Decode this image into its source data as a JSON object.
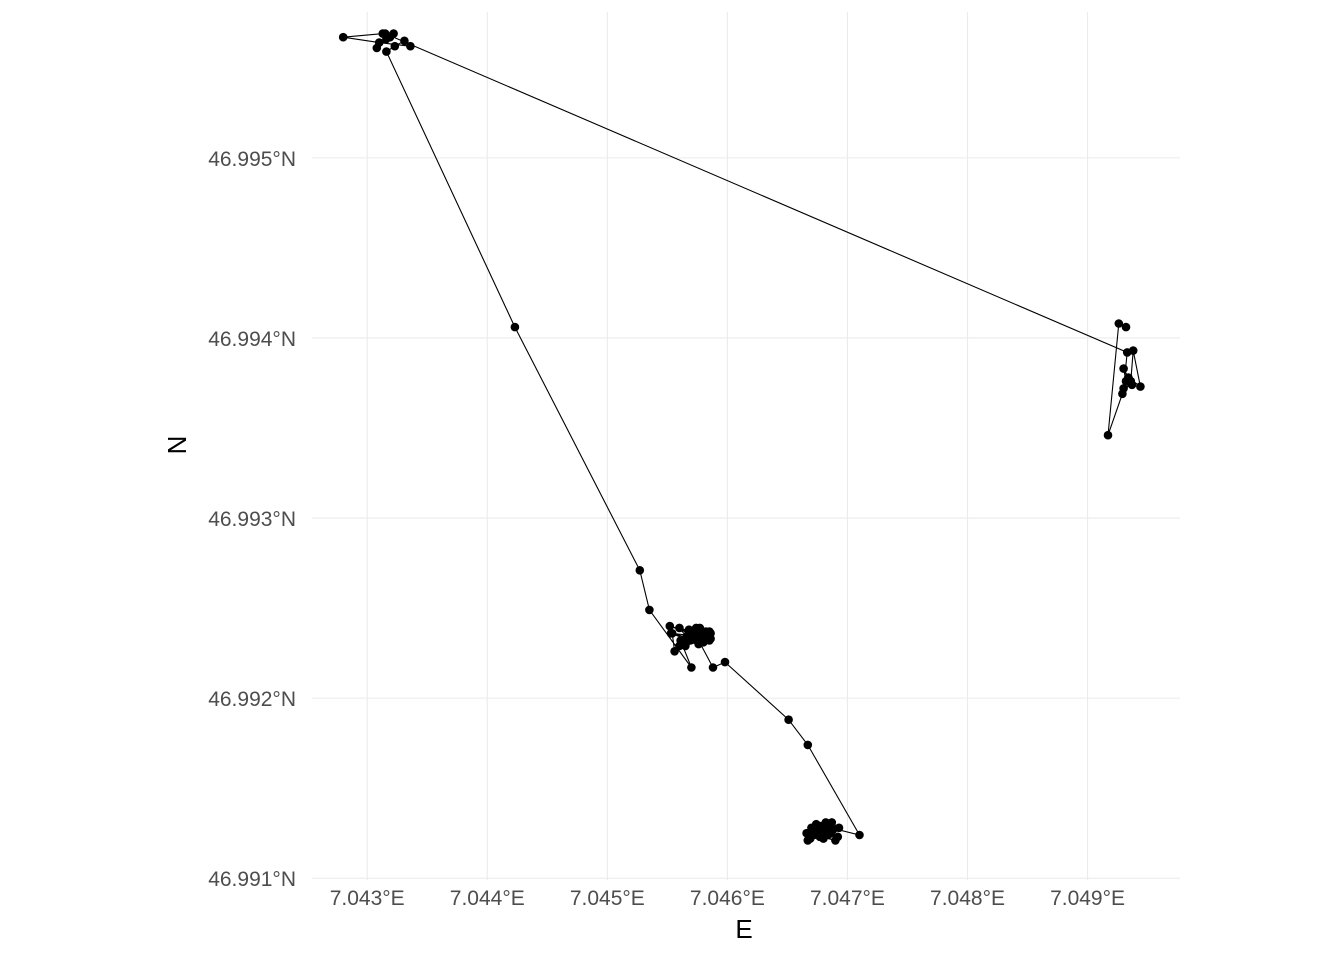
{
  "chart_data": {
    "type": "scatter",
    "subtype": "gps-track",
    "title": "",
    "xlabel": "E",
    "ylabel": "N",
    "xlim": [
      7.04254,
      7.04977
    ],
    "ylim": [
      46.99099,
      46.99581
    ],
    "grid": "on",
    "legend": "none",
    "colors": {
      "points": "#000000",
      "path": "#000000",
      "grid": "#ebebeb",
      "tick_text": "#4d4d4d"
    },
    "x_ticks": [
      {
        "value": 7.043,
        "label": "7.043°E"
      },
      {
        "value": 7.044,
        "label": "7.044°E"
      },
      {
        "value": 7.045,
        "label": "7.045°E"
      },
      {
        "value": 7.046,
        "label": "7.046°E"
      },
      {
        "value": 7.047,
        "label": "7.047°E"
      },
      {
        "value": 7.048,
        "label": "7.048°E"
      },
      {
        "value": 7.049,
        "label": "7.049°E"
      }
    ],
    "y_ticks": [
      {
        "value": 46.991,
        "label": "46.991°N"
      },
      {
        "value": 46.992,
        "label": "46.992°N"
      },
      {
        "value": 46.993,
        "label": "46.993°N"
      },
      {
        "value": 46.994,
        "label": "46.994°N"
      },
      {
        "value": 46.995,
        "label": "46.995°N"
      }
    ],
    "series": [
      {
        "x": [
          7.04677,
          7.04667,
          7.04675,
          7.04686,
          7.0467,
          7.0468,
          7.04688,
          7.04672,
          7.0469,
          7.04682,
          7.04666,
          7.04678,
          7.04692,
          7.04673,
          7.04684,
          7.04668,
          7.04679,
          7.04669,
          7.04693,
          7.04687,
          7.04671,
          7.04676,
          7.04684,
          7.04674,
          7.0471,
          7.04667,
          7.04651,
          7.04598,
          7.04588,
          7.04576,
          7.04575,
          7.0456,
          7.04566,
          7.0458,
          7.04554,
          7.04556,
          7.04565,
          7.0457,
          7.04579,
          7.04571,
          7.04586,
          7.04577,
          7.0456,
          7.04585,
          7.04552,
          7.04578,
          7.04569,
          7.04576,
          7.04553,
          7.04581,
          7.04568,
          7.04582,
          7.04563,
          7.04586,
          7.04567,
          7.04574,
          7.04585,
          7.04561,
          7.0457,
          7.04535,
          7.04527,
          7.04423,
          7.04316,
          7.04323,
          7.04331,
          7.04336,
          7.0431,
          7.0428,
          7.04313,
          7.04322,
          7.04316,
          7.04308,
          7.04319,
          7.04315,
          7.04933,
          7.0493,
          7.04937,
          7.04932,
          7.0493,
          7.04934,
          7.04944,
          7.04938,
          7.04936,
          7.04929,
          7.04917,
          7.04926,
          7.04932
        ],
        "y": [
          46.99123,
          46.99121,
          46.99126,
          46.99125,
          46.99128,
          46.99122,
          46.99127,
          46.99124,
          46.99121,
          46.99131,
          46.99125,
          46.99129,
          46.99123,
          46.99127,
          46.99124,
          46.99123,
          46.99126,
          46.99122,
          46.99128,
          46.99131,
          46.99126,
          46.99124,
          46.99127,
          46.9913,
          46.99124,
          46.99174,
          46.99188,
          46.9922,
          46.99217,
          46.99232,
          46.99236,
          46.99239,
          46.99234,
          46.99231,
          46.99236,
          46.99226,
          46.99229,
          46.99237,
          46.99234,
          46.99233,
          46.99236,
          46.99239,
          46.99229,
          46.99232,
          46.9924,
          46.99235,
          46.99232,
          46.9923,
          46.99236,
          46.99234,
          46.99238,
          46.99237,
          46.99231,
          46.99233,
          46.99235,
          46.99239,
          46.99237,
          46.99232,
          46.99217,
          46.99249,
          46.99271,
          46.99406,
          46.99559,
          46.99562,
          46.99565,
          46.99562,
          46.99564,
          46.99567,
          46.99569,
          46.99569,
          46.99566,
          46.99561,
          46.99567,
          46.99569,
          46.99392,
          46.99372,
          46.99374,
          46.99376,
          46.99383,
          46.99378,
          46.99373,
          46.99393,
          46.99376,
          46.99369,
          46.99346,
          46.99408,
          46.99406
        ]
      }
    ]
  }
}
